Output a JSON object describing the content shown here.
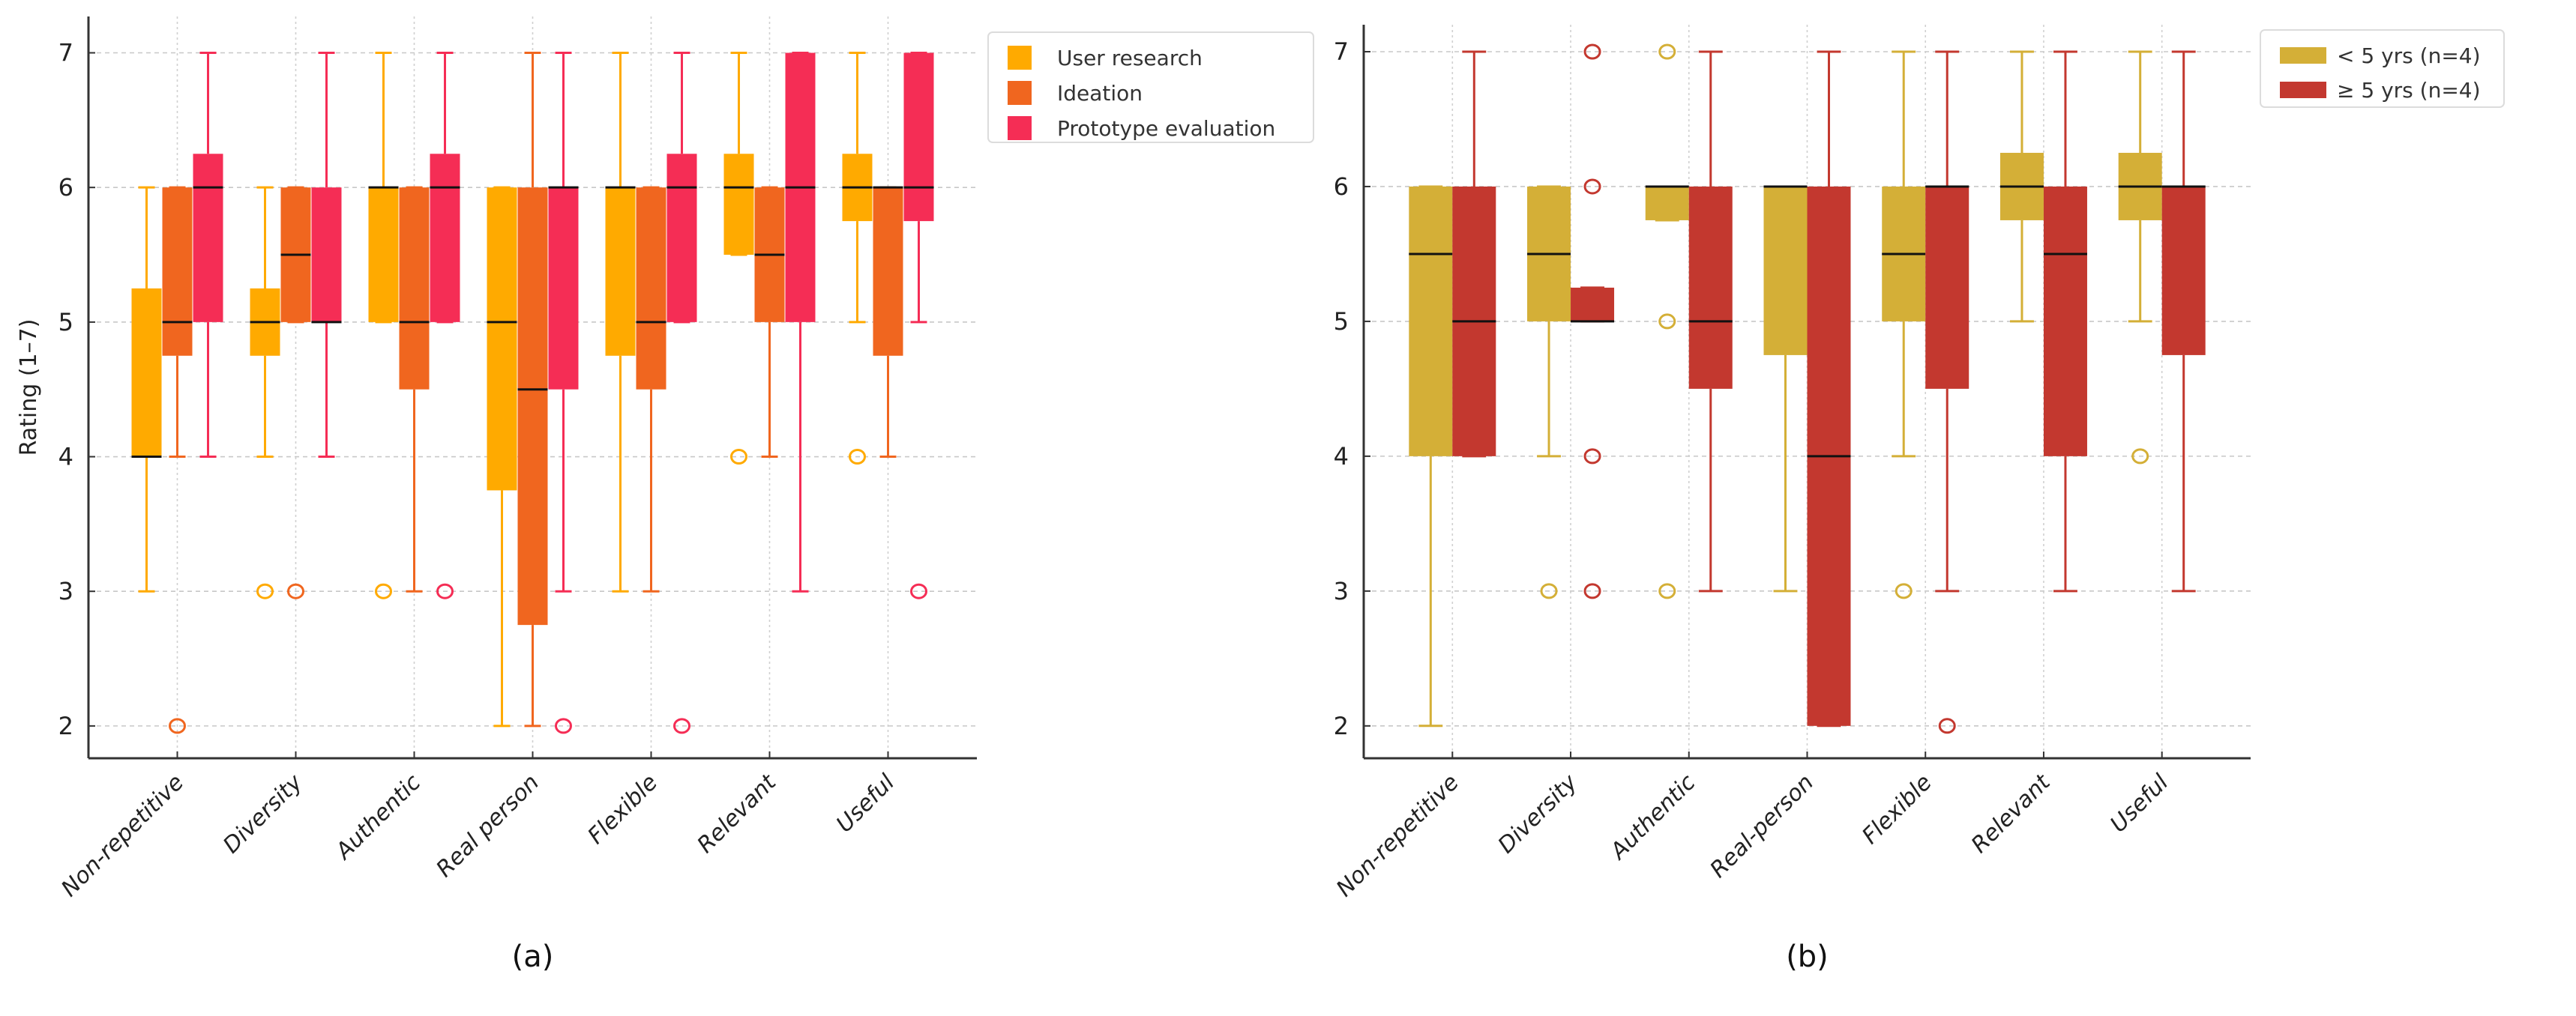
{
  "chart_data": [
    {
      "type": "boxplot",
      "caption": "(a)",
      "title": "",
      "xlabel": "",
      "ylabel": "Rating (1–7)",
      "ylim": [
        1.76,
        7.27
      ],
      "yticks": [
        2,
        3,
        4,
        5,
        6,
        7
      ],
      "grid": true,
      "legend_position": "outside-top-right",
      "categories": [
        "Non-repetitive",
        "Diversity",
        "Authentic",
        "Real person",
        "Flexible",
        "Relevant",
        "Useful"
      ],
      "series": [
        {
          "name": "User research",
          "color": "#FFAA00",
          "boxes": [
            {
              "whislo": 3,
              "q1": 4,
              "med": 4,
              "q3": 5.25,
              "whishi": 6,
              "fliers": []
            },
            {
              "whislo": 4,
              "q1": 4.75,
              "med": 5,
              "q3": 5.25,
              "whishi": 6,
              "fliers": [
                3
              ]
            },
            {
              "whislo": 5,
              "q1": 5,
              "med": 6,
              "q3": 6,
              "whishi": 7,
              "fliers": [
                3
              ]
            },
            {
              "whislo": 2,
              "q1": 3.75,
              "med": 5,
              "q3": 6,
              "whishi": 6,
              "fliers": []
            },
            {
              "whislo": 3,
              "q1": 4.75,
              "med": 6,
              "q3": 6,
              "whishi": 7,
              "fliers": []
            },
            {
              "whislo": 5.5,
              "q1": 5.5,
              "med": 6,
              "q3": 6.25,
              "whishi": 7,
              "fliers": [
                4
              ]
            },
            {
              "whislo": 5,
              "q1": 5.75,
              "med": 6,
              "q3": 6.25,
              "whishi": 7,
              "fliers": [
                4
              ]
            }
          ]
        },
        {
          "name": "Ideation",
          "color": "#F0661F",
          "boxes": [
            {
              "whislo": 4,
              "q1": 4.75,
              "med": 5,
              "q3": 6,
              "whishi": 6,
              "fliers": [
                2
              ]
            },
            {
              "whislo": 5,
              "q1": 5,
              "med": 5.5,
              "q3": 6,
              "whishi": 6,
              "fliers": [
                3
              ]
            },
            {
              "whislo": 3,
              "q1": 4.5,
              "med": 5,
              "q3": 6,
              "whishi": 6,
              "fliers": []
            },
            {
              "whislo": 2,
              "q1": 2.75,
              "med": 4.5,
              "q3": 6,
              "whishi": 7,
              "fliers": []
            },
            {
              "whislo": 3,
              "q1": 4.5,
              "med": 5,
              "q3": 6,
              "whishi": 6,
              "fliers": []
            },
            {
              "whislo": 4,
              "q1": 5,
              "med": 5.5,
              "q3": 6,
              "whishi": 6,
              "fliers": []
            },
            {
              "whislo": 4,
              "q1": 4.75,
              "med": 6,
              "q3": 6,
              "whishi": 6,
              "fliers": []
            }
          ]
        },
        {
          "name": "Prototype evaluation",
          "color": "#F52D55",
          "boxes": [
            {
              "whislo": 4,
              "q1": 5,
              "med": 6,
              "q3": 6.25,
              "whishi": 7,
              "fliers": []
            },
            {
              "whislo": 4,
              "q1": 5,
              "med": 5,
              "q3": 6,
              "whishi": 7,
              "fliers": []
            },
            {
              "whislo": 5,
              "q1": 5,
              "med": 6,
              "q3": 6.25,
              "whishi": 7,
              "fliers": [
                3
              ]
            },
            {
              "whislo": 3,
              "q1": 4.5,
              "med": 6,
              "q3": 6,
              "whishi": 7,
              "fliers": [
                2
              ]
            },
            {
              "whislo": 5,
              "q1": 5,
              "med": 6,
              "q3": 6.25,
              "whishi": 7,
              "fliers": [
                2
              ]
            },
            {
              "whislo": 3,
              "q1": 5,
              "med": 6,
              "q3": 7,
              "whishi": 7,
              "fliers": []
            },
            {
              "whislo": 5,
              "q1": 5.75,
              "med": 6,
              "q3": 7,
              "whishi": 7,
              "fliers": [
                3
              ]
            }
          ]
        }
      ]
    },
    {
      "type": "boxplot",
      "caption": "(b)",
      "title": "",
      "xlabel": "",
      "ylabel": "",
      "ylim": [
        1.76,
        7.2
      ],
      "yticks": [
        2,
        3,
        4,
        5,
        6,
        7
      ],
      "grid": true,
      "legend_position": "outside-top-right",
      "categories": [
        "Non-repetitive",
        "Diversity",
        "Authentic",
        "Real-person",
        "Flexible",
        "Relevant",
        "Useful"
      ],
      "series": [
        {
          "name": "< 5 yrs (n=4)",
          "color": "#D4AF37",
          "boxes": [
            {
              "whislo": 2,
              "q1": 4,
              "med": 5.5,
              "q3": 6,
              "whishi": 6,
              "fliers": []
            },
            {
              "whislo": 4,
              "q1": 5,
              "med": 5.5,
              "q3": 6,
              "whishi": 6,
              "fliers": [
                3
              ]
            },
            {
              "whislo": 5.75,
              "q1": 5.75,
              "med": 6,
              "q3": 6,
              "whishi": 6,
              "fliers": [
                7,
                5,
                3
              ]
            },
            {
              "whislo": 3,
              "q1": 4.75,
              "med": 6,
              "q3": 6,
              "whishi": 6,
              "fliers": []
            },
            {
              "whislo": 4,
              "q1": 5,
              "med": 5.5,
              "q3": 6,
              "whishi": 7,
              "fliers": [
                3
              ]
            },
            {
              "whislo": 5,
              "q1": 5.75,
              "med": 6,
              "q3": 6.25,
              "whishi": 7,
              "fliers": []
            },
            {
              "whislo": 5,
              "q1": 5.75,
              "med": 6,
              "q3": 6.25,
              "whishi": 7,
              "fliers": [
                4
              ]
            }
          ]
        },
        {
          "name": "≥ 5 yrs (n=4)",
          "color": "#C3382F",
          "boxes": [
            {
              "whislo": 4,
              "q1": 4,
              "med": 5,
              "q3": 6,
              "whishi": 7,
              "fliers": []
            },
            {
              "whislo": 5,
              "q1": 5,
              "med": 5,
              "q3": 5.25,
              "whishi": 5.25,
              "fliers": [
                7,
                6,
                4,
                3
              ]
            },
            {
              "whislo": 3,
              "q1": 4.5,
              "med": 5,
              "q3": 6,
              "whishi": 7,
              "fliers": []
            },
            {
              "whislo": 2,
              "q1": 2,
              "med": 4,
              "q3": 6,
              "whishi": 7,
              "fliers": []
            },
            {
              "whislo": 3,
              "q1": 4.5,
              "med": 6,
              "q3": 6,
              "whishi": 7,
              "fliers": [
                2
              ]
            },
            {
              "whislo": 3,
              "q1": 4,
              "med": 5.5,
              "q3": 6,
              "whishi": 7,
              "fliers": []
            },
            {
              "whislo": 3,
              "q1": 4.75,
              "med": 6,
              "q3": 6,
              "whishi": 7,
              "fliers": []
            }
          ]
        }
      ]
    }
  ]
}
